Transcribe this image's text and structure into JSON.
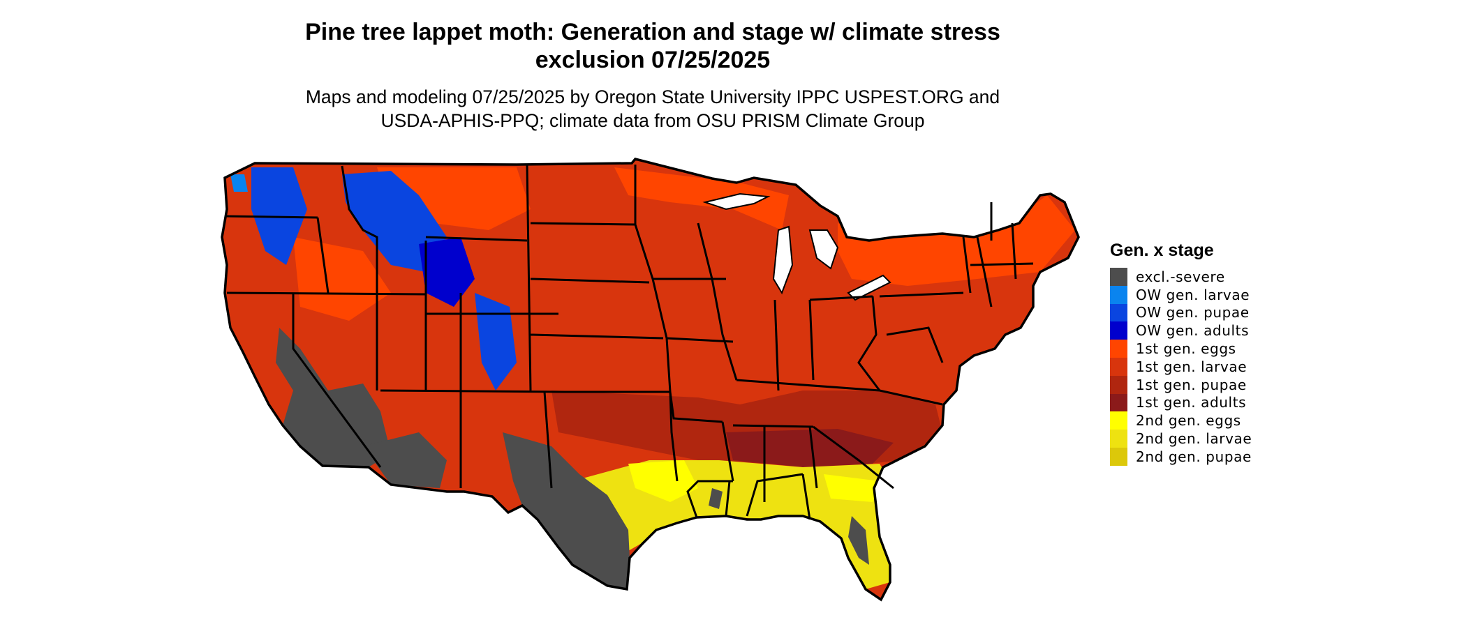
{
  "title_line1": "Pine tree lappet moth: Generation and stage w/ climate stress",
  "title_line2": "exclusion 07/25/2025",
  "subtitle_line1": "Maps and modeling 07/25/2025 by Oregon State University IPPC USPEST.ORG and",
  "subtitle_line2": "USDA-APHIS-PPQ; climate data from OSU PRISM Climate Group",
  "legend": {
    "title": "Gen. x stage",
    "items": [
      {
        "label": "excl.-severe",
        "color": "#4d4d4d"
      },
      {
        "label": "OW gen. larvae",
        "color": "#0a84ef"
      },
      {
        "label": "OW gen. pupae",
        "color": "#0a45e0"
      },
      {
        "label": "OW gen. adults",
        "color": "#0000cd"
      },
      {
        "label": "1st gen. eggs",
        "color": "#ff4500"
      },
      {
        "label": "1st gen. larvae",
        "color": "#d8350d"
      },
      {
        "label": "1st gen. pupae",
        "color": "#b0260f"
      },
      {
        "label": "1st gen. adults",
        "color": "#8b1a1a"
      },
      {
        "label": "2nd gen. eggs",
        "color": "#ffff00"
      },
      {
        "label": "2nd gen. larvae",
        "color": "#eee211"
      },
      {
        "label": "2nd gen. pupae",
        "color": "#dcc80a"
      }
    ]
  }
}
